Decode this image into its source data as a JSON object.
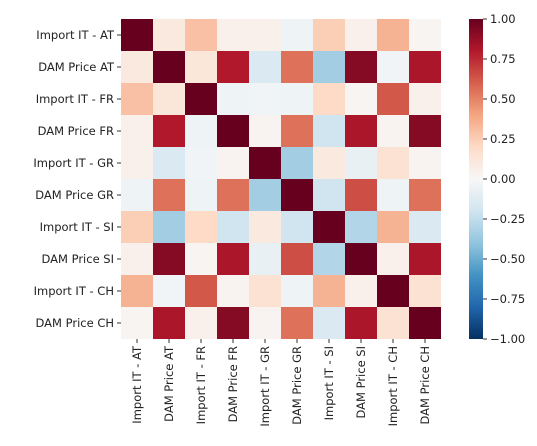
{
  "chart_data": {
    "type": "heatmap",
    "title": "",
    "xlabel": "",
    "ylabel": "",
    "labels": [
      "Import IT - AT",
      "DAM Price AT",
      "Import IT - FR",
      "DAM Price FR",
      "Import IT - GR",
      "DAM Price GR",
      "Import IT - SI",
      "DAM Price SI",
      "Import IT - CH",
      "DAM Price CH"
    ],
    "matrix": [
      [
        1.0,
        0.1,
        0.3,
        0.05,
        0.05,
        -0.05,
        0.25,
        0.05,
        0.35,
        0.02
      ],
      [
        0.1,
        1.0,
        0.12,
        0.8,
        -0.15,
        0.55,
        -0.35,
        0.92,
        -0.03,
        0.82
      ],
      [
        0.3,
        0.12,
        1.0,
        -0.05,
        -0.03,
        -0.05,
        0.2,
        0.02,
        0.62,
        0.05
      ],
      [
        0.05,
        0.8,
        -0.05,
        1.0,
        0.03,
        0.55,
        -0.2,
        0.82,
        0.03,
        0.92
      ],
      [
        0.05,
        -0.15,
        -0.03,
        0.03,
        1.0,
        -0.35,
        0.1,
        -0.08,
        0.15,
        0.03
      ],
      [
        -0.05,
        0.55,
        -0.05,
        0.55,
        -0.35,
        1.0,
        -0.2,
        0.65,
        -0.05,
        0.55
      ],
      [
        0.25,
        -0.35,
        0.2,
        -0.2,
        0.1,
        -0.2,
        1.0,
        -0.3,
        0.35,
        -0.15
      ],
      [
        0.05,
        0.92,
        0.02,
        0.82,
        -0.08,
        0.65,
        -0.3,
        1.0,
        0.05,
        0.82
      ],
      [
        0.35,
        -0.03,
        0.62,
        0.03,
        0.15,
        -0.05,
        0.35,
        0.05,
        1.0,
        0.15
      ],
      [
        0.02,
        0.82,
        0.05,
        0.92,
        0.03,
        0.55,
        -0.15,
        0.82,
        0.15,
        1.0
      ]
    ],
    "vmin": -1.0,
    "vmax": 1.0,
    "colormap": "RdBu_r",
    "colorbar_ticks": [
      1.0,
      0.75,
      0.5,
      0.25,
      0.0,
      -0.25,
      -0.5,
      -0.75,
      -1.0
    ],
    "colorbar_tick_labels": [
      "1.00",
      "0.75",
      "0.50",
      "0.25",
      "0.00",
      "−0.25",
      "−0.50",
      "−0.75",
      "−1.00"
    ],
    "colorbar_position": "right",
    "grid": false
  }
}
